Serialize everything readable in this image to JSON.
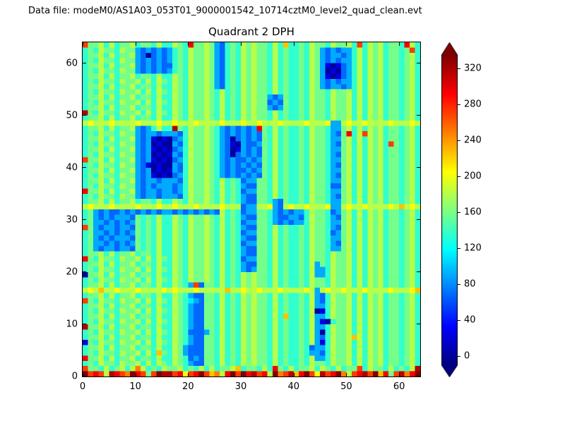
{
  "header": {
    "data_file_label": "Data file: modeM0/AS1A03_053T01_9000001542_10714cztM0_level2_quad_clean.evt"
  },
  "colors": {
    "background": "#ffffff",
    "axes": "#000000",
    "text": "#000000"
  },
  "chart_data": {
    "type": "heatmap",
    "title": "Quadrant 2 DPH",
    "xlabel": "",
    "ylabel": "",
    "x_range": [
      0,
      64
    ],
    "y_range": [
      0,
      64
    ],
    "x_ticks": [
      0,
      10,
      20,
      30,
      40,
      50,
      60
    ],
    "y_ticks": [
      0,
      10,
      20,
      30,
      40,
      50,
      60
    ],
    "colormap": "jet",
    "colorbar": {
      "ticks": [
        0,
        40,
        80,
        120,
        160,
        200,
        240,
        280,
        320
      ],
      "extend": "both",
      "vmin": -10,
      "vmax": 335
    },
    "grid_encoding": {
      "description": "64x64 detector pixel hit map (DPH). Each row is a 64-char hex string, x=0 left to x=63 right; rows ordered bottom (y=0) to top (y=63). Cell value ~= hexdigit * 340/15 counts.",
      "digit_value_step": 22.667
    },
    "rows_bottom_to_top": [
      "fcdc8edcbfdc7cfeecd9cdfcab8dfcfdecd8fbceadfc9ecdfb8cdecfad7cebdf",
      "c776867868b867687786768686778a677686d768677868768677c6877686768e",
      "6768776877868687687643377686768787768676676877687786868786776786",
      "d778686778677686687634377686768787768676676844687786868786776786",
      "67687768778686a7687433377686768787768676676443687786868786776786",
      "6778686778677686687433377686768787768676676344687786868786776786",
      "1768776877868687687643377686768787768676676841687786868786776786",
      "677868677867768668764337768676878776867667684368778a868786776786",
      "6768776877868687687633347686768787768676676840687786868786776786",
      "e778686778677686687643377686768787768676676844687786868786776786",
      "6768776877868687687643377686768787768676676841067786868786776786",
      "67786867786776866876433776867687877686a6676844687786868786776786",
      "6768776877868687687643377686768787768676676801687786868786776786",
      "6778686778677686687643377686768787768676676844687786868786776786",
      "c768776877868687687654377686768787768676676843687786868786776786",
      "6778686778677686687643377686768787768676676843687786868786776786",
      "898a88988898888989888988888a88988988898888984898898889888898889a",
      "677868677867768668764c377686768787768676676877687786868786776786",
      "6768776877868687687687787686768787768676676877687786868786776786",
      "0778686778677686687687787686768787768676676844687786868786776786",
      "6768776877868687687687787686764347768676676844687786868786776786",
      "6778686778677686687687787686764337768676676847687786868786776786",
      "d768776877868687687687787686763447768676676877687786868786776786",
      "6778686778677686687687787686764337768676676877687786868786776786",
      "6743443443767686687687787686764337768676676877644786868786776786",
      "6744343434767686687687787686763447768676676877643786868786776786",
      "6743434443767686687687787686764337768676676877644786868786776786",
      "6744343434767686687687787686763447768676676877634786868786776786",
      "c743443443767686687687787686764337768676676877643786868786776786",
      "6744343434767686687687787686763447764343446877644786868786776786",
      "6743434443767686687687787686764337764334436877643786868786776786",
      "6743433434343434434343434386763447764343446877634786868786776786",
      "898889888898889889888988889888344889438988988894489889888898a898",
      "6778686778677686687687787686764337764376676877644786868786776786",
      "6768776877434434443687787686764337768676676877643786868786776786",
      "d778686778434434434687787686763447768676676877644786868786776786",
      "6768776877434344434687787686764337768676676877633786868786776786",
      "6778686778434434443687787686763447768676676877644786868786776786",
      "6768776877434101034687787643434343768676676877643786868786776786",
      "6778686778434010143687787643433434768676676877644786868786776786",
      "6768776877431010043687787643434343768676676877643786868786776786",
      "c778686778434101034687787643433434768676676877644786868786776786",
      "6768776877434010143687787643034343768676676877643786868786776786",
      "6778686778434101034687787643014343768676676877644786868786776786",
      "6768776877434010043687787643104334768676676877643786868786c76786",
      "6778686778434101034687787643034343768676676877644786868786776786",
      "67687768774344344436877876434343437686766768776437d68c8786776786",
      "67786867784346866e768778764343434d768676676877644786868786776786",
      "8988898888988898898889888898889889888988889888944898898888988898",
      "6778686778677686687687787686768787768676676877687786868786776786",
      "e768776877868687687687787686768787768676676877687786868786776786",
      "6778686778677686687687787686768787743476676877687786868786776786",
      "6768776877868687687687787686768787734376676877687786868786776786",
      "6778686778677686687687787686768787743476676877687786868786776786",
      "6768776877868687687687787686768787768676676877687786868786776786",
      "6778686778677686687687787436768787768676676874344346868786776786",
      "6768776877868687687687787436768787768676676874343446868786776786",
      "6778686778677686687687787436768787768676676874101346868786776786",
      "6768776877434343467687787436768787768676676874010346868786776786",
      "6778686778434343367687787436768787768676676874101346868786776786",
      "6768776877434343467687787436768787768676676874343446868786776786",
      "6778686778430343467687787436768787768676676874344346868786776786",
      "67687768774343434676877874367687877686766768743434468687867767c6",
      "c7786867786776866876d77874367687877686a6676877687786c68786776d86"
    ]
  }
}
